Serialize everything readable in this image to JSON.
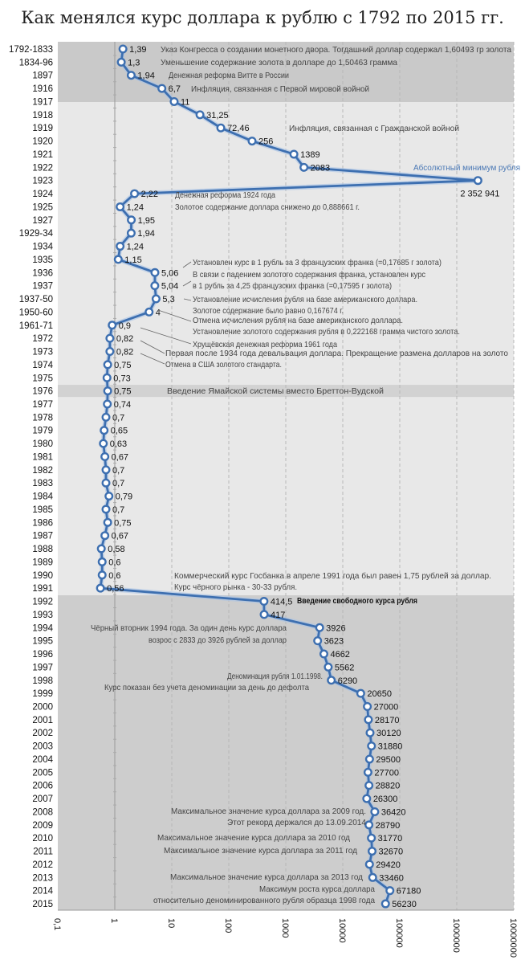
{
  "chart_data": {
    "type": "line",
    "title": "Как менялся курс доллара к рублю с 1792 по 2015 гг.",
    "orientation": "horizontal",
    "x_scale": "log",
    "xlim": [
      0.1,
      10000000
    ],
    "x_ticks": [
      "0,1",
      "1",
      "10",
      "100",
      "1000",
      "10000",
      "100000",
      "1000000",
      "10000000"
    ],
    "grid": true,
    "line_color": "#3d6fb0",
    "categories": [
      "1792-1833",
      "1834-96",
      "1897",
      "1916",
      "1917",
      "1918",
      "1919",
      "1920",
      "1921",
      "1922",
      "1923",
      "1924",
      "1925",
      "1927",
      "1929-34",
      "1934",
      "1935",
      "1936",
      "1937",
      "1937-50",
      "1950-60",
      "1961-71",
      "1972",
      "1973",
      "1974",
      "1975",
      "1976",
      "1977",
      "1978",
      "1979",
      "1980",
      "1981",
      "1982",
      "1983",
      "1984",
      "1985",
      "1986",
      "1987",
      "1988",
      "1989",
      "1990",
      "1991",
      "1992",
      "1993",
      "1994",
      "1995",
      "1996",
      "1997",
      "1998",
      "1999",
      "2000",
      "2001",
      "2002",
      "2003",
      "2004",
      "2005",
      "2006",
      "2007",
      "2008",
      "2009",
      "2010",
      "2011",
      "2012",
      "2013",
      "2014",
      "2015"
    ],
    "values": [
      1.39,
      1.3,
      1.94,
      6.7,
      11,
      31.25,
      72.46,
      256,
      1389,
      2083,
      2352941,
      2.22,
      1.24,
      1.95,
      1.94,
      1.24,
      1.15,
      5.06,
      5.04,
      5.3,
      4,
      0.9,
      0.82,
      0.82,
      0.75,
      0.73,
      0.75,
      0.74,
      0.7,
      0.65,
      0.63,
      0.67,
      0.7,
      0.7,
      0.79,
      0.7,
      0.75,
      0.67,
      0.58,
      0.6,
      0.6,
      0.56,
      414.5,
      417,
      3926,
      3623,
      4662,
      5562,
      6290,
      20650,
      27000,
      28170,
      30120,
      31880,
      29500,
      27700,
      28820,
      26300,
      36420,
      28790,
      31770,
      32670,
      29420,
      33460,
      67180,
      56230
    ],
    "value_labels": [
      "1,39",
      "1,3",
      "1,94",
      "6,7",
      "11",
      "31,25",
      "72,46",
      "256",
      "1389",
      "2083",
      "2 352 941",
      "2,22",
      "1,24",
      "1,95",
      "1,94",
      "1,24",
      "1,15",
      "5,06",
      "5,04",
      "5,3",
      "4",
      "0,9",
      "0,82",
      "0,82",
      "0,75",
      "0,73",
      "0,75",
      "0,74",
      "0,7",
      "0,65",
      "0,63",
      "0,67",
      "0,7",
      "0,7",
      "0,79",
      "0,7",
      "0,75",
      "0,67",
      "0,58",
      "0,6",
      "0,6",
      "0,56",
      "414,5",
      "417",
      "3926",
      "3623",
      "4662",
      "5562",
      "6290",
      "20650",
      "27000",
      "28170",
      "30120",
      "31880",
      "29500",
      "27700",
      "28820",
      "26300",
      "36420",
      "28790",
      "31770",
      "32670",
      "29420",
      "33460",
      "67180",
      "56230"
    ],
    "annotations": [
      "Указ Конгресса о создании монетного двора. Тогдашний доллар содержал 1,60493 гр золота",
      "Уменьшение содержание золота в долларе до 1,50463 грамма",
      "Денежная реформа Витте в России",
      "Инфляция, связанная с Первой мировой войной",
      "Инфляция, связанная с Гражданской войной",
      "Абсолютный минимум рубля",
      "Денежная реформа 1924 года",
      "Золотое содержание доллара снижено до 0,888661 г.",
      "Установлен курс в 1 рубль за 3 французских франка (=0,17685 г золота)",
      "В связи с падением золотого содержания франка, установлен курс",
      "в 1 рубль за 4,25 французских франка (=0,17595 г золота)",
      "Установление исчисления рубля на базе американского доллара.",
      "Золотое содержание было равно 0,167674 г.",
      "Отмена исчисления рубля на базе американского доллара.",
      "Установление золотого содержания рубля в 0,222168 грамма чистого золота.",
      "Хрущёвская денежная реформа 1961 года",
      "Первая после 1934 года девальвация доллара. Прекращение размена долларов на золото",
      "Отмена в США золотого стандарта.",
      "Введение Ямайской системы вместо Бреттон-Вудской",
      "Коммерческий курс Госбанка в апреле 1991 года был равен 1,75 рублей за доллар.",
      "Курс чёрного рынка - 30-33 рубля.",
      "Введение свободного курса рубля",
      "Чёрный вторник 1994 года. За один день курс доллара",
      "возрос с 2833 до 3926 рублей за доллар",
      "Деноминация рубля 1.01.1998.",
      "Курс показан без учета деноминации за день до дефолта",
      "Максимальное значение курса доллара за 2009 год.",
      "Этот рекорд держался до 13.09.2014",
      "Максимальное значение курса доллара за 2010 год",
      "Максимальное значение курса доллара за 2011 год",
      "Максимальное значение курса доллара за 2013 год",
      "Максимум роста курса доллара",
      "относительно деноминированного рубля образца 1998 года"
    ],
    "highlight_color": "#4a78b5"
  }
}
